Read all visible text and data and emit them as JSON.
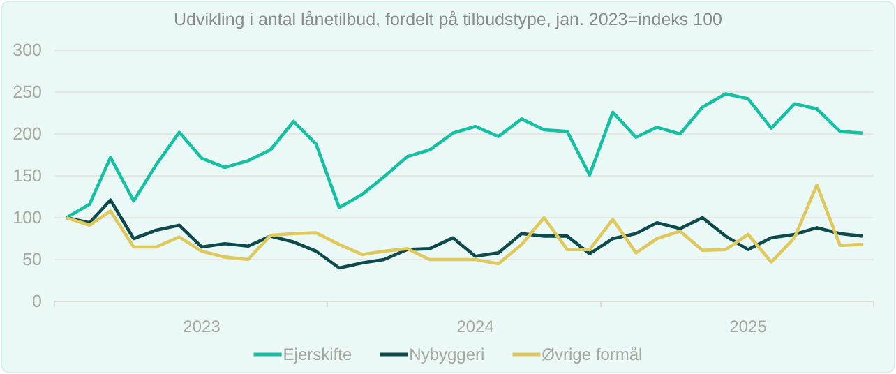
{
  "chart_data": {
    "type": "line",
    "title": "Udvikling i antal lånetilbud, fordelt på tilbudstype, jan. 2023=indeks 100",
    "x": [
      "2023-01",
      "2023-02",
      "2023-03",
      "2023-04",
      "2023-05",
      "2023-06",
      "2023-07",
      "2023-08",
      "2023-09",
      "2023-10",
      "2023-11",
      "2023-12",
      "2024-01",
      "2024-02",
      "2024-03",
      "2024-04",
      "2024-05",
      "2024-06",
      "2024-07",
      "2024-08",
      "2024-09",
      "2024-10",
      "2024-11",
      "2024-12",
      "2025-01",
      "2025-02",
      "2025-03",
      "2025-04",
      "2025-05",
      "2025-06",
      "2025-07",
      "2025-08",
      "2025-09",
      "2025-10",
      "2025-11",
      "2025-12"
    ],
    "series": [
      {
        "name": "Ejerskifte",
        "color": "#17bfa3",
        "values": [
          100,
          116,
          172,
          120,
          163,
          202,
          171,
          160,
          168,
          181,
          215,
          188,
          112,
          128,
          149,
          173,
          181,
          201,
          209,
          197,
          218,
          205,
          203,
          151,
          226,
          196,
          208,
          200,
          232,
          248,
          242,
          207,
          236,
          230,
          203,
          201
        ]
      },
      {
        "name": "Nybyggeri",
        "color": "#0e4a4c",
        "values": [
          100,
          94,
          121,
          75,
          85,
          91,
          65,
          69,
          66,
          78,
          71,
          60,
          40,
          46,
          50,
          62,
          63,
          76,
          54,
          58,
          81,
          78,
          78,
          57,
          75,
          81,
          94,
          87,
          100,
          78,
          62,
          76,
          80,
          88,
          81,
          78
        ]
      },
      {
        "name": "Øvrige formål",
        "color": "#dfc85c",
        "values": [
          100,
          91,
          108,
          65,
          65,
          77,
          60,
          53,
          50,
          79,
          81,
          82,
          68,
          56,
          60,
          63,
          50,
          50,
          50,
          45,
          68,
          100,
          62,
          62,
          98,
          58,
          75,
          84,
          61,
          62,
          80,
          47,
          76,
          139,
          67,
          68
        ]
      }
    ],
    "xlim": [
      "2022-12-16",
      "2025-12-16"
    ],
    "xticks": [
      {
        "value": "2022-12-16",
        "label": null
      },
      {
        "value": "2023-07-01",
        "label": "2023"
      },
      {
        "value": "2023-12-16",
        "label": null
      },
      {
        "value": "2024-07-01",
        "label": "2024"
      },
      {
        "value": "2024-12-16",
        "label": null
      },
      {
        "value": "2025-07-01",
        "label": "2025"
      },
      {
        "value": "2025-12-16",
        "label": null
      }
    ],
    "ylim": [
      0,
      300
    ],
    "yticks": [
      0,
      50,
      100,
      150,
      200,
      250,
      300
    ],
    "grid": "y",
    "legend": "bottom",
    "marker": "none",
    "line_style": "solid"
  }
}
